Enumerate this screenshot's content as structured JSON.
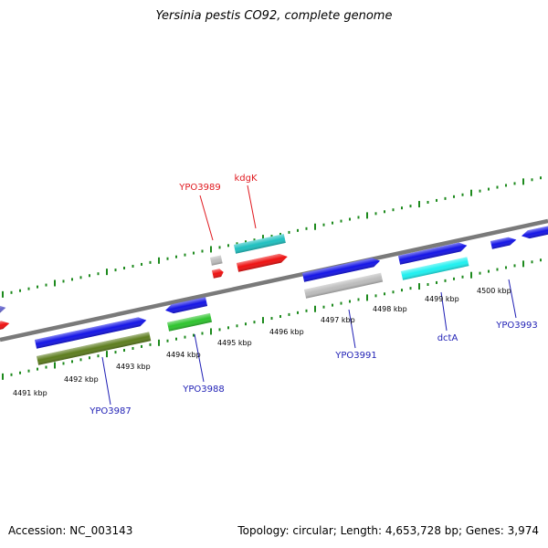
{
  "title": "Yersinia pestis CO92, complete genome",
  "footer": {
    "accession": "Accession: NC_003143",
    "summary": "Topology: circular; Length: 4,653,728 bp; Genes: 3,974"
  },
  "colors": {
    "backbone": "#7a7a7a",
    "ticks": "#1d8a1d",
    "label_red": "#e0191f",
    "label_blue": "#1f1fb5"
  },
  "scale": {
    "unit": "kbp",
    "tick_labels": [
      "4491 kbp",
      "4492 kbp",
      "4493 kbp",
      "4494 kbp",
      "4495 kbp",
      "4496 kbp",
      "4497 kbp",
      "4498 kbp",
      "4499 kbp",
      "4500 kbp"
    ]
  },
  "gene_labels": [
    {
      "text": "YPO3989",
      "color": "red"
    },
    {
      "text": "kdgK",
      "color": "red"
    },
    {
      "text": "YPO3987",
      "color": "blue"
    },
    {
      "text": "YPO3988",
      "color": "blue"
    },
    {
      "text": "YPO3991",
      "color": "blue"
    },
    {
      "text": "dctA",
      "color": "blue"
    },
    {
      "text": "YPO3993",
      "color": "blue"
    }
  ],
  "features": [
    {
      "name": "feature-violet",
      "color": "#6666cc"
    },
    {
      "name": "feature-red-left",
      "color": "#ee1111"
    },
    {
      "name": "YPO3987",
      "color": "#1515e6"
    },
    {
      "name": "feature-olive",
      "color": "#5d7d1e"
    },
    {
      "name": "YPO3988",
      "color": "#1515e6"
    },
    {
      "name": "feature-green",
      "color": "#2ec42e"
    },
    {
      "name": "feature-gray-small",
      "color": "#bcbcbc"
    },
    {
      "name": "YPO3989",
      "color": "#ee1111"
    },
    {
      "name": "kdgK",
      "color": "#1fc0c0"
    },
    {
      "name": "feature-red-kdgk",
      "color": "#ee1111"
    },
    {
      "name": "YPO3991",
      "color": "#1515e6"
    },
    {
      "name": "feature-gray-ypo3991",
      "color": "#bcbcbc"
    },
    {
      "name": "feature-blue-dcta",
      "color": "#1515e6"
    },
    {
      "name": "dctA",
      "color": "#1ff0f0"
    },
    {
      "name": "YPO3993",
      "color": "#1515e6"
    },
    {
      "name": "feature-blue-right",
      "color": "#1515e6"
    }
  ]
}
